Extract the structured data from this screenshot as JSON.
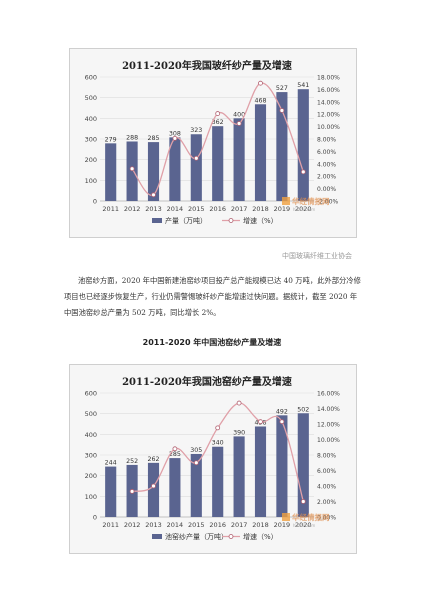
{
  "source_note": "中国玻璃纤维工业协会",
  "paragraph": "池窑纱方面，2020 年中国新建池窑纱项目投产总产能规模已达 40 万吨，此外部分冷修项目也已经逐步恢复生产，行业仍需警惕玻纤纱产能增速过快问题。据统计，截至 2020 年中国池窑纱总产量为 502 万吨，同比增长 2%。",
  "section_heading": "2011-2020 年中国池窑纱产量及增速",
  "watermark": {
    "cn": "华经情报网",
    "en": "huaon.com"
  },
  "chart_data": [
    {
      "type": "bar",
      "title": "2011-2020年我国玻纤纱产量及增速",
      "categories": [
        "2011",
        "2012",
        "2013",
        "2014",
        "2015",
        "2016",
        "2017",
        "2018",
        "2019",
        "2020"
      ],
      "series": [
        {
          "name": "产量（万吨）",
          "type": "bar",
          "axis": "left",
          "values": [
            279,
            288,
            285,
            308,
            323,
            362,
            400,
            468,
            527,
            541
          ]
        },
        {
          "name": "增速（%）",
          "type": "line",
          "axis": "right",
          "values": [
            null,
            3.2,
            -1.0,
            8.1,
            4.9,
            12.1,
            10.5,
            17.0,
            12.6,
            2.7
          ]
        }
      ],
      "ylim": [
        0,
        600
      ],
      "yticks": [
        0,
        100,
        200,
        300,
        400,
        500,
        600
      ],
      "y2lim": [
        -2,
        18
      ],
      "y2ticks": [
        "-2.00%",
        "0.00%",
        "2.00%",
        "4.00%",
        "6.00%",
        "8.00%",
        "10.00%",
        "12.00%",
        "14.00%",
        "16.00%",
        "18.00%"
      ],
      "legend": "bottom",
      "colors": {
        "bar": "#5a6490",
        "line": "#e0a0a8"
      }
    },
    {
      "type": "bar",
      "title": "2011-2020年我国池窑纱产量及增速",
      "categories": [
        "2011",
        "2012",
        "2013",
        "2014",
        "2015",
        "2016",
        "2017",
        "2018",
        "2019",
        "2020"
      ],
      "series": [
        {
          "name": "池窑纱产量（万吨）",
          "type": "bar",
          "axis": "left",
          "values": [
            244,
            252,
            262,
            285,
            305,
            340,
            390,
            438,
            492,
            502
          ]
        },
        {
          "name": "增速（%）",
          "type": "line",
          "axis": "right",
          "values": [
            null,
            3.3,
            4.0,
            8.8,
            7.0,
            11.5,
            14.7,
            12.3,
            12.3,
            2.0
          ]
        }
      ],
      "ylim": [
        0,
        600
      ],
      "yticks": [
        0,
        100,
        200,
        300,
        400,
        500,
        600
      ],
      "y2lim": [
        0,
        16
      ],
      "y2ticks": [
        "0.00%",
        "2.00%",
        "4.00%",
        "6.00%",
        "8.00%",
        "10.00%",
        "12.00%",
        "14.00%",
        "16.00%"
      ],
      "legend": "bottom",
      "colors": {
        "bar": "#5a6490",
        "line": "#e0a0a8"
      }
    }
  ]
}
